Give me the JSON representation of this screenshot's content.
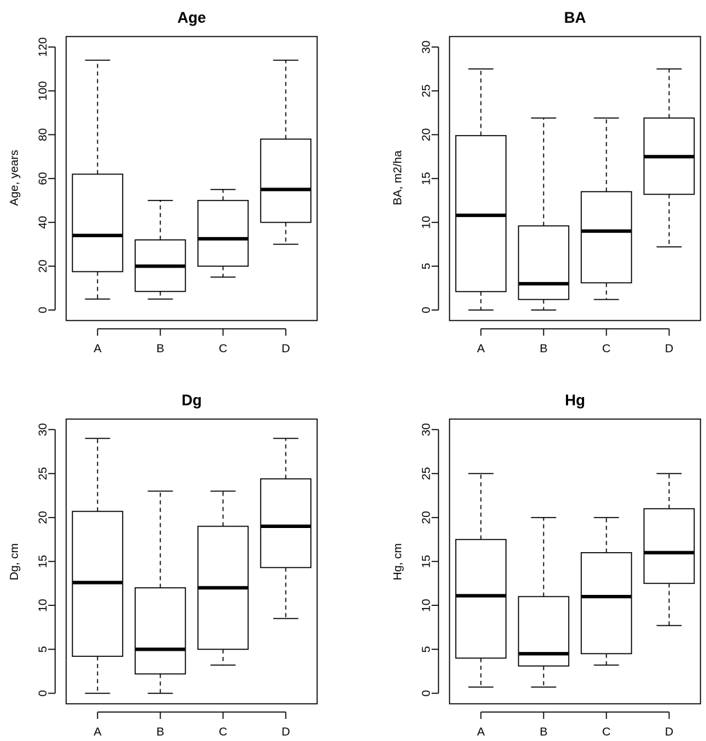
{
  "chart_data": [
    {
      "type": "boxplot",
      "title": "Age",
      "ylabel": "Age, years",
      "xlabel": "",
      "ylim": [
        0,
        120
      ],
      "yticks": [
        0,
        20,
        40,
        60,
        80,
        100,
        120
      ],
      "categories": [
        "A",
        "B",
        "C",
        "D"
      ],
      "boxes": [
        {
          "min": 5,
          "q1": 17.5,
          "median": 34,
          "q3": 62,
          "max": 114
        },
        {
          "min": 5,
          "q1": 8.5,
          "median": 20,
          "q3": 32,
          "max": 50
        },
        {
          "min": 15,
          "q1": 20,
          "median": 32.5,
          "q3": 50,
          "max": 55
        },
        {
          "min": 30,
          "q1": 40,
          "median": 55,
          "q3": 78,
          "max": 114
        }
      ]
    },
    {
      "type": "boxplot",
      "title": "BA",
      "ylabel": "BA, m2/ha",
      "xlabel": "",
      "ylim": [
        0,
        30
      ],
      "yticks": [
        0,
        5,
        10,
        15,
        20,
        25,
        30
      ],
      "categories": [
        "A",
        "B",
        "C",
        "D"
      ],
      "boxes": [
        {
          "min": 0,
          "q1": 2.1,
          "median": 10.8,
          "q3": 19.9,
          "max": 27.5
        },
        {
          "min": 0,
          "q1": 1.2,
          "median": 3.0,
          "q3": 9.6,
          "max": 21.9
        },
        {
          "min": 1.2,
          "q1": 3.1,
          "median": 9.0,
          "q3": 13.5,
          "max": 21.9
        },
        {
          "min": 7.2,
          "q1": 13.2,
          "median": 17.5,
          "q3": 21.9,
          "max": 27.5
        }
      ]
    },
    {
      "type": "boxplot",
      "title": "Dg",
      "ylabel": "Dg, cm",
      "xlabel": "",
      "ylim": [
        0,
        30
      ],
      "yticks": [
        0,
        5,
        10,
        15,
        20,
        25,
        30
      ],
      "categories": [
        "A",
        "B",
        "C",
        "D"
      ],
      "boxes": [
        {
          "min": 0,
          "q1": 4.2,
          "median": 12.6,
          "q3": 20.7,
          "max": 29
        },
        {
          "min": 0,
          "q1": 2.2,
          "median": 5.0,
          "q3": 12.0,
          "max": 23
        },
        {
          "min": 3.2,
          "q1": 5.0,
          "median": 12.0,
          "q3": 19.0,
          "max": 23
        },
        {
          "min": 8.5,
          "q1": 14.3,
          "median": 19.0,
          "q3": 24.4,
          "max": 29
        }
      ]
    },
    {
      "type": "boxplot",
      "title": "Hg",
      "ylabel": "Hg, cm",
      "xlabel": "",
      "ylim": [
        0,
        30
      ],
      "yticks": [
        0,
        5,
        10,
        15,
        20,
        25,
        30
      ],
      "categories": [
        "A",
        "B",
        "C",
        "D"
      ],
      "boxes": [
        {
          "min": 0.7,
          "q1": 4.0,
          "median": 11.1,
          "q3": 17.5,
          "max": 25
        },
        {
          "min": 0.7,
          "q1": 3.1,
          "median": 4.5,
          "q3": 11.0,
          "max": 20
        },
        {
          "min": 3.2,
          "q1": 4.5,
          "median": 11.0,
          "q3": 16.0,
          "max": 20
        },
        {
          "min": 7.7,
          "q1": 12.5,
          "median": 16.0,
          "q3": 21.0,
          "max": 25
        }
      ]
    }
  ]
}
